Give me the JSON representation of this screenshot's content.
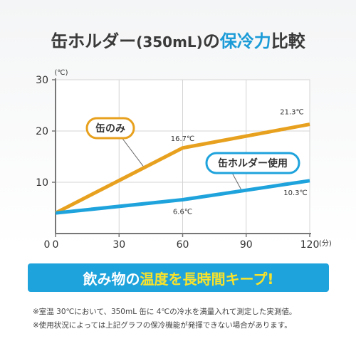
{
  "title": {
    "part1": "缶ホルダー",
    "part2": "(350mL)",
    "part3": "の",
    "part4": "保冷力",
    "part5": "比較"
  },
  "chart_data": {
    "type": "line",
    "title": "",
    "xlabel": "",
    "ylabel": "",
    "x_unit": "(分)",
    "y_unit": "(℃)",
    "xlim": [
      0,
      120
    ],
    "ylim": [
      0,
      30
    ],
    "x_ticks": [
      "0",
      "30",
      "60",
      "90",
      "120"
    ],
    "y_ticks": [
      "10",
      "20",
      "30"
    ],
    "grid": true,
    "series": [
      {
        "name": "缶のみ",
        "color": "#e8a11f",
        "points": [
          [
            0,
            4
          ],
          [
            60,
            16.7
          ],
          [
            120,
            21.3
          ]
        ],
        "labels": [
          {
            "x": 60,
            "y": 16.7,
            "text": "16.7℃"
          },
          {
            "x": 120,
            "y": 21.3,
            "text": "21.3℃"
          }
        ]
      },
      {
        "name": "缶ホルダー使用",
        "color": "#1fa3dc",
        "points": [
          [
            0,
            4
          ],
          [
            60,
            6.6
          ],
          [
            120,
            10.3
          ]
        ],
        "labels": [
          {
            "x": 60,
            "y": 6.6,
            "text": "6.6℃"
          },
          {
            "x": 120,
            "y": 10.3,
            "text": "10.3℃"
          }
        ]
      }
    ]
  },
  "banner": {
    "part1": "飲み物の",
    "part2": "温度を長時間キープ!"
  },
  "notes": [
    "※室温 30℃において、350mL 缶に 4℃の冷水を満量入れて測定した実測値。",
    "※使用状況によっては上記グラフの保冷機能が発揮できない場合があります。"
  ]
}
